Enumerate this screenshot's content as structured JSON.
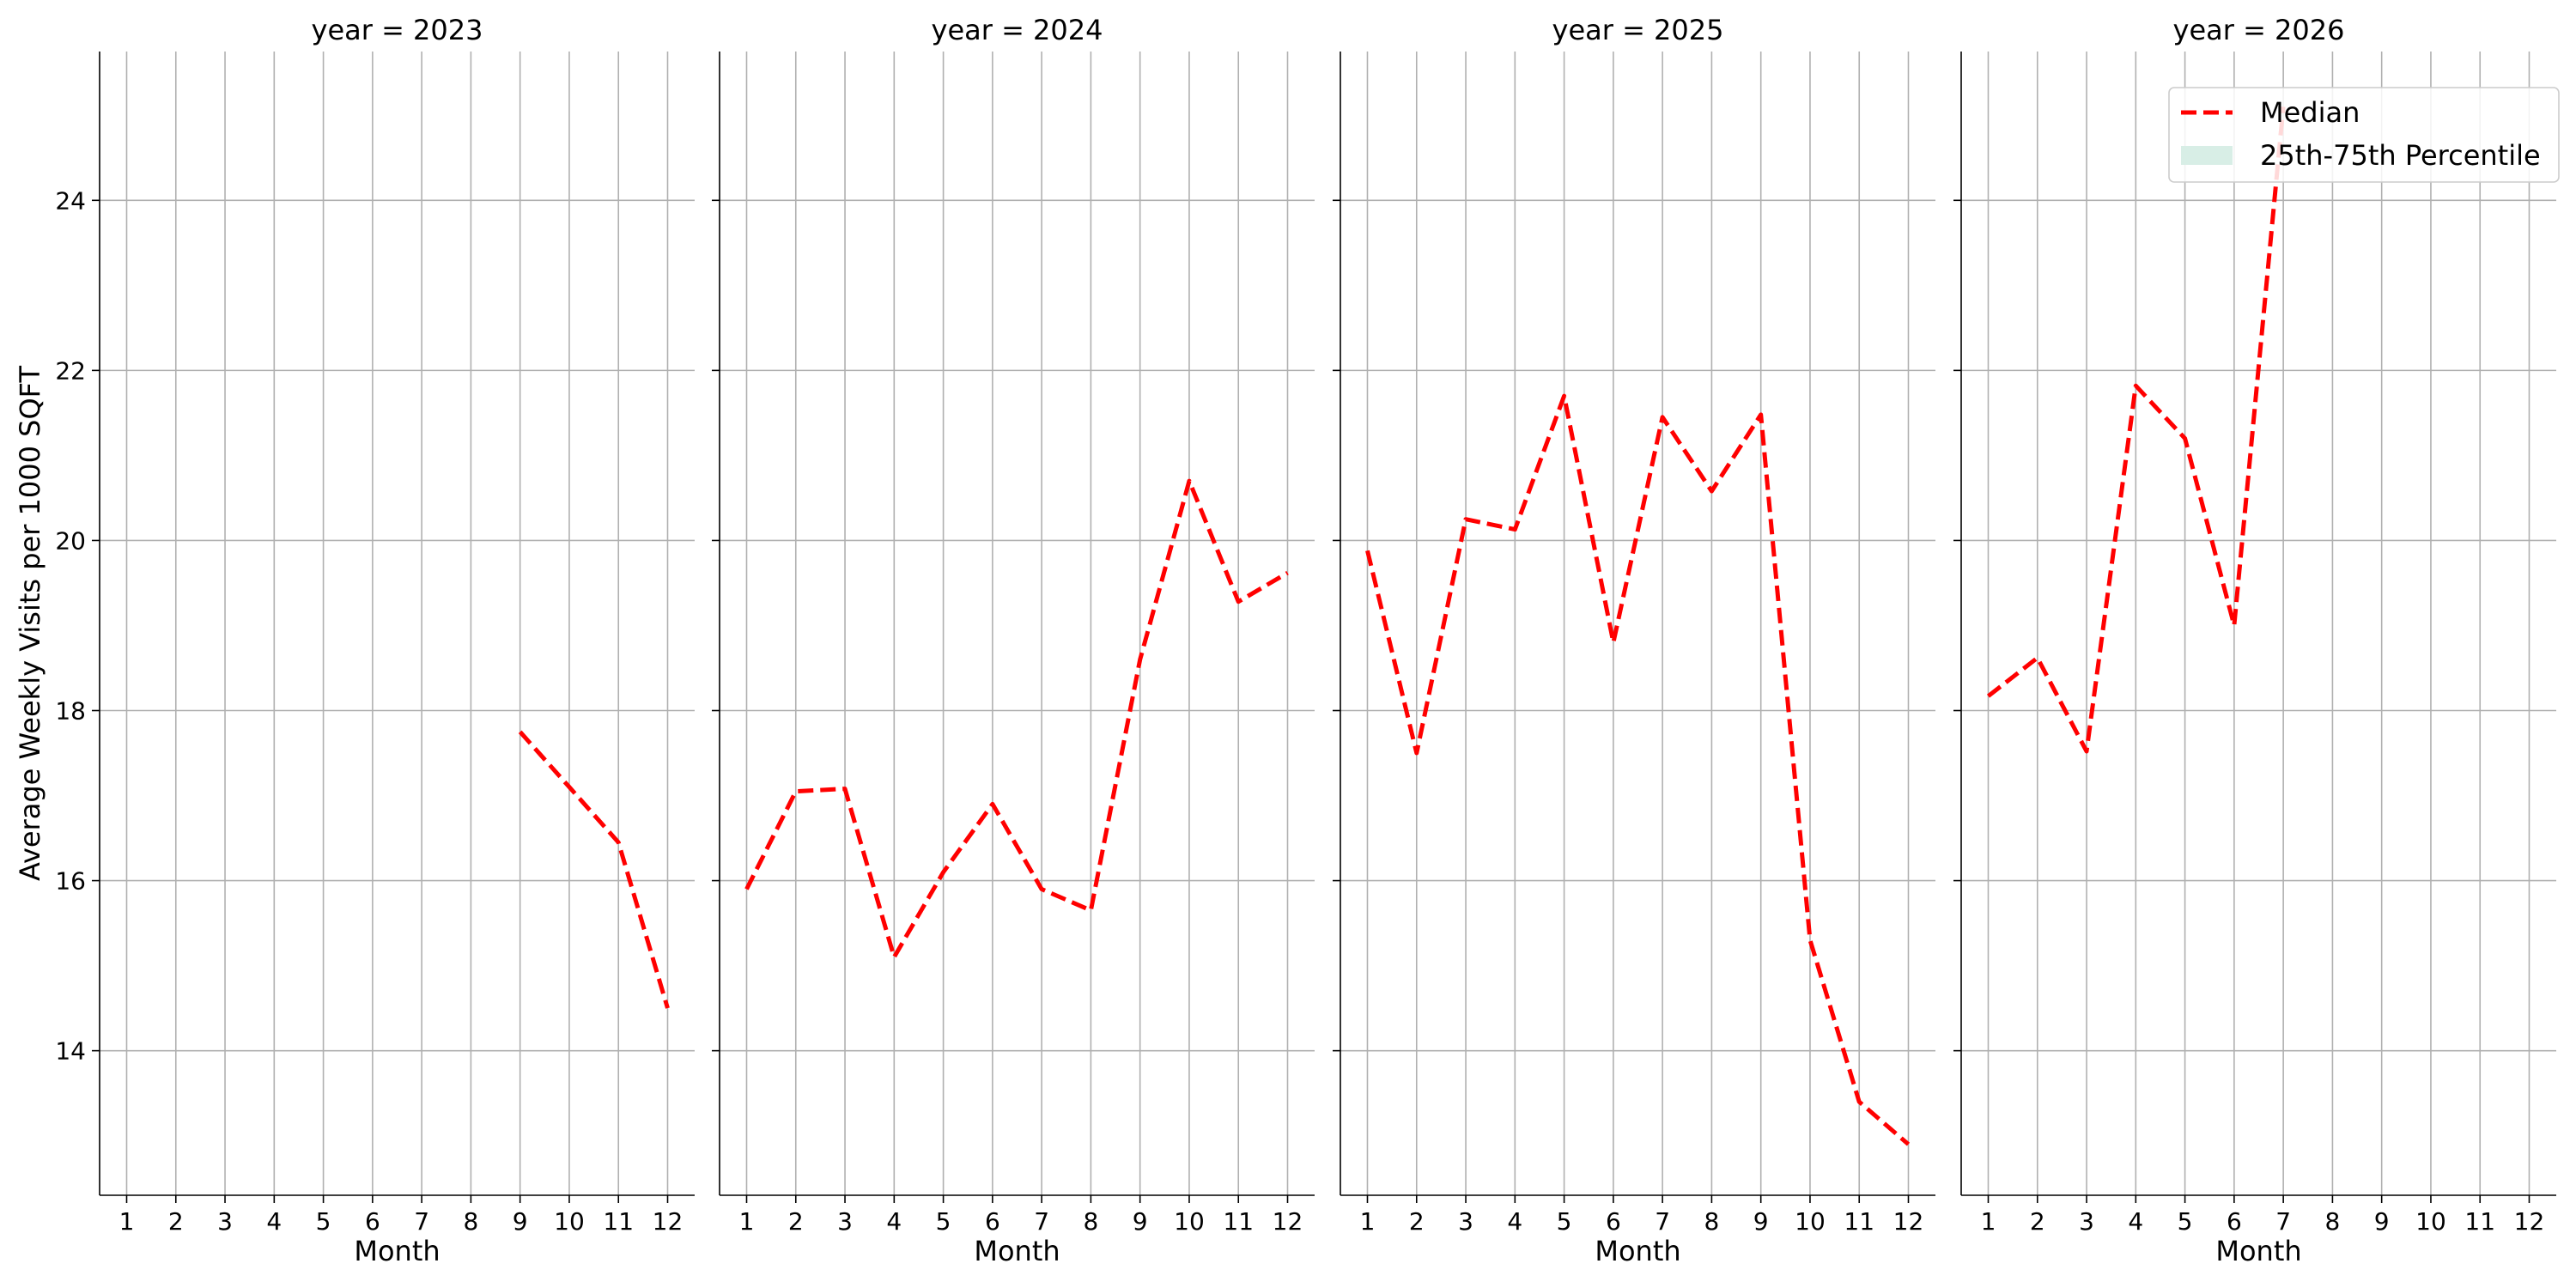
{
  "chart_data": {
    "type": "line",
    "ylabel": "Average Weekly Visits per 1000 SQFT",
    "xlabel": "Month",
    "x_ticks": [
      "1",
      "2",
      "3",
      "4",
      "5",
      "6",
      "7",
      "8",
      "9",
      "10",
      "11",
      "12"
    ],
    "y_ticks": [
      "14",
      "16",
      "18",
      "20",
      "22",
      "24"
    ],
    "xlim": [
      0.45,
      12.55
    ],
    "ylim": [
      12.3,
      25.75
    ],
    "grid": true,
    "series_color": "#ff0000",
    "band_color": "#d8eee6",
    "legend": {
      "placement": "top-right",
      "entries": [
        {
          "label": "Median",
          "kind": "line"
        },
        {
          "label": "25th-75th Percentile",
          "kind": "band"
        }
      ]
    },
    "panels": [
      {
        "title": "year = 2023",
        "series": [
          {
            "name": "Median",
            "x": [
              9,
              10,
              11,
              12
            ],
            "y": [
              17.75,
              17.1,
              16.45,
              14.5
            ]
          }
        ]
      },
      {
        "title": "year = 2024",
        "series": [
          {
            "name": "Median",
            "x": [
              1,
              2,
              3,
              4,
              5,
              6,
              7,
              8,
              9,
              10,
              11,
              12
            ],
            "y": [
              15.9,
              17.05,
              17.08,
              15.1,
              16.1,
              16.9,
              15.9,
              15.65,
              18.6,
              20.7,
              19.28,
              19.62
            ]
          }
        ]
      },
      {
        "title": "year = 2025",
        "series": [
          {
            "name": "Median",
            "x": [
              1,
              2,
              3,
              4,
              5,
              6,
              7,
              8,
              9,
              10,
              11,
              12
            ],
            "y": [
              19.88,
              17.5,
              20.25,
              20.13,
              21.7,
              18.8,
              21.45,
              20.58,
              21.48,
              15.3,
              13.4,
              12.9
            ]
          }
        ]
      },
      {
        "title": "year = 2026",
        "series": [
          {
            "name": "Median",
            "x": [
              1,
              2,
              3,
              4,
              5,
              6,
              7
            ],
            "y": [
              18.17,
              18.62,
              17.52,
              21.82,
              21.2,
              19.0,
              25.1
            ]
          }
        ]
      }
    ]
  }
}
